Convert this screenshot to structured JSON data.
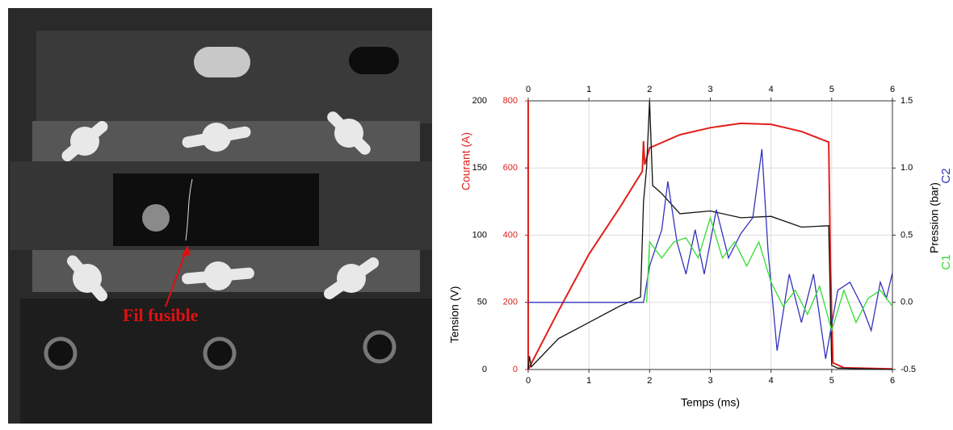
{
  "photo": {
    "label": "Fil fusible"
  },
  "chart_data": {
    "type": "line",
    "xlabel": "Temps (ms)",
    "xlim": [
      0,
      6
    ],
    "xticks": [
      0,
      1,
      2,
      3,
      4,
      5,
      6
    ],
    "x2lim": [
      0,
      6
    ],
    "x2ticks": [
      0,
      1,
      2,
      3,
      4,
      5,
      6
    ],
    "ylabel": "Tension (V)",
    "ylim": [
      0,
      200
    ],
    "yticks": [
      0,
      50,
      100,
      150,
      200
    ],
    "y3label": "Courant (A)",
    "y3lim": [
      0,
      800
    ],
    "y3ticks": [
      0,
      200,
      400,
      600,
      800
    ],
    "y3color": "#e0201b",
    "y2label": "Pression (bar)",
    "y2lim": [
      -0.5,
      1.5
    ],
    "y2ticks": [
      -0.5,
      {
        "value": 0,
        "label": "0.0"
      },
      0.5,
      {
        "value": 1,
        "label": "1.0"
      },
      1.5
    ],
    "grid": true,
    "series": [
      {
        "name": "Courant (A)",
        "color": "#e0201b",
        "axis": "y3",
        "x": [
          0,
          0.5,
          1,
          1.5,
          1.88,
          1.9,
          1.92,
          2,
          2.5,
          3,
          3.5,
          4,
          4.5,
          4.95,
          4.98,
          5.02,
          5.2,
          6
        ],
        "values": [
          0,
          175,
          343,
          480,
          590,
          680,
          610,
          660,
          699,
          720,
          733,
          730,
          709,
          677,
          300,
          20,
          5,
          2
        ]
      },
      {
        "name": "Tension (V)",
        "color": "#111111",
        "axis": "y",
        "x": [
          0,
          0.02,
          0.05,
          0.5,
          1,
          1.5,
          1.85,
          1.9,
          1.95,
          2,
          2.05,
          2.2,
          2.5,
          3,
          3.5,
          4,
          4.5,
          4.95,
          5,
          5.1,
          6
        ],
        "values": [
          0,
          10,
          2,
          23,
          35,
          47,
          54,
          125,
          150,
          200,
          137,
          131,
          116,
          118,
          113,
          114,
          106,
          107,
          3,
          1,
          0
        ]
      },
      {
        "name": "C2",
        "color": "#3333bb",
        "axis": "y2",
        "x": [
          0,
          1.9,
          2,
          2.2,
          2.3,
          2.45,
          2.6,
          2.75,
          2.9,
          3.1,
          3.3,
          3.5,
          3.7,
          3.85,
          3.95,
          4.1,
          4.3,
          4.5,
          4.7,
          4.9,
          5.1,
          5.3,
          5.5,
          5.65,
          5.8,
          5.9,
          6
        ],
        "values": [
          0,
          0,
          0.27,
          0.54,
          0.9,
          0.45,
          0.21,
          0.54,
          0.21,
          0.69,
          0.33,
          0.51,
          0.63,
          1.14,
          0.39,
          -0.36,
          0.21,
          -0.15,
          0.21,
          -0.42,
          0.09,
          0.15,
          -0.03,
          -0.21,
          0.15,
          0.03,
          0.22
        ]
      },
      {
        "name": "C1",
        "color": "#33dd33",
        "axis": "y2",
        "x": [
          1.95,
          2,
          2.2,
          2.4,
          2.6,
          2.8,
          3,
          3.2,
          3.4,
          3.6,
          3.8,
          4,
          4.2,
          4.4,
          4.6,
          4.8,
          5,
          5.2,
          5.4,
          5.6,
          5.8,
          6
        ],
        "values": [
          0,
          0.45,
          0.33,
          0.45,
          0.48,
          0.33,
          0.63,
          0.33,
          0.45,
          0.27,
          0.45,
          0.15,
          -0.03,
          0.09,
          -0.09,
          0.12,
          -0.21,
          0.09,
          -0.15,
          0.03,
          0.09,
          -0.03
        ]
      }
    ]
  }
}
